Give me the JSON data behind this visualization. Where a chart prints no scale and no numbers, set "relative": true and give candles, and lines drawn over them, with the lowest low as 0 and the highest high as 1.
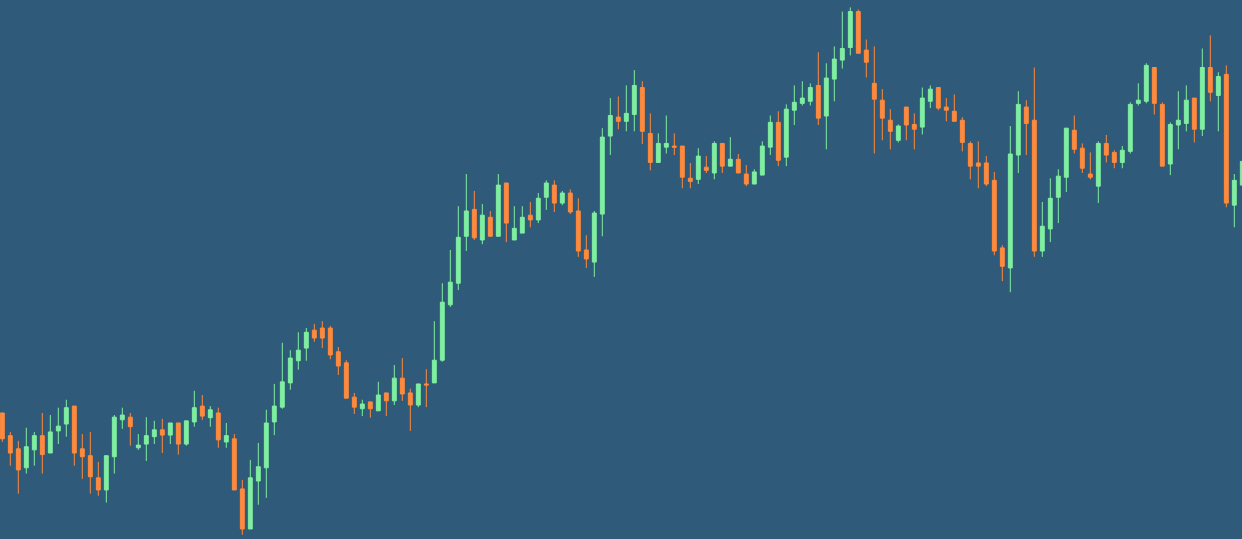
{
  "chart_data": {
    "type": "candlestick",
    "relative": true,
    "tick_labels": false,
    "categories": [
      null,
      null,
      null,
      null,
      null,
      null,
      null,
      null,
      null,
      null,
      null,
      null,
      null,
      null,
      null,
      null,
      null,
      null,
      null,
      null,
      null,
      null,
      null,
      null,
      null,
      null,
      null,
      null,
      null,
      null,
      null,
      null,
      null,
      null,
      null,
      null,
      null,
      null,
      null,
      null,
      null,
      null,
      null,
      null,
      null,
      null,
      null,
      null,
      null,
      null,
      null,
      null,
      null,
      null,
      null,
      null,
      null,
      null,
      null,
      null,
      null,
      null,
      null,
      null,
      null,
      null,
      null,
      null,
      null,
      null,
      null,
      null,
      null,
      null,
      null,
      null,
      null,
      null,
      null,
      null,
      null,
      null,
      null,
      null,
      null,
      null,
      null,
      null,
      null,
      null,
      null,
      null,
      null,
      null,
      null,
      null,
      null,
      null,
      null,
      null,
      null,
      null,
      null,
      null,
      null,
      null,
      null,
      null,
      null,
      null,
      null,
      null,
      null,
      null,
      null,
      null,
      null,
      null,
      null,
      null,
      null,
      null,
      null,
      null,
      null,
      null,
      null,
      null,
      null,
      null,
      null,
      null,
      null,
      null,
      null,
      null,
      null,
      null,
      null,
      null,
      null,
      null,
      null,
      null,
      null,
      null,
      null,
      null,
      null,
      null,
      null,
      null,
      null,
      null,
      null,
      null
    ],
    "ohlc": [
      [
        0.231,
        0.231,
        0.176,
        0.182
      ],
      [
        0.188,
        0.195,
        0.131,
        0.155
      ],
      [
        0.163,
        0.178,
        0.078,
        0.123
      ],
      [
        0.127,
        0.203,
        0.116,
        0.167
      ],
      [
        0.161,
        0.195,
        0.131,
        0.188
      ],
      [
        0.188,
        0.231,
        0.116,
        0.152
      ],
      [
        0.155,
        0.227,
        0.155,
        0.195
      ],
      [
        0.197,
        0.241,
        0.172,
        0.206
      ],
      [
        0.21,
        0.256,
        0.186,
        0.241
      ],
      [
        0.244,
        0.244,
        0.131,
        0.155
      ],
      [
        0.163,
        0.191,
        0.106,
        0.148
      ],
      [
        0.15,
        0.195,
        0.078,
        0.11
      ],
      [
        0.108,
        0.138,
        0.074,
        0.085
      ],
      [
        0.085,
        0.15,
        0.061,
        0.15
      ],
      [
        0.148,
        0.227,
        0.116,
        0.223
      ],
      [
        0.218,
        0.241,
        0.201,
        0.227
      ],
      [
        0.223,
        0.231,
        0.169,
        0.205
      ],
      [
        0.165,
        0.191,
        0.161,
        0.17
      ],
      [
        0.172,
        0.223,
        0.14,
        0.188
      ],
      [
        0.186,
        0.216,
        0.172,
        0.199
      ],
      [
        0.199,
        0.22,
        0.155,
        0.189
      ],
      [
        0.189,
        0.212,
        0.172,
        0.212
      ],
      [
        0.212,
        0.212,
        0.152,
        0.172
      ],
      [
        0.172,
        0.216,
        0.169,
        0.216
      ],
      [
        0.214,
        0.273,
        0.205,
        0.241
      ],
      [
        0.244,
        0.265,
        0.218,
        0.225
      ],
      [
        0.222,
        0.244,
        0.205,
        0.237
      ],
      [
        0.231,
        0.241,
        0.165,
        0.18
      ],
      [
        0.176,
        0.212,
        0.165,
        0.188
      ],
      [
        0.182,
        0.191,
        0.085,
        0.085
      ],
      [
        0.087,
        0.104,
        0,
        0.011
      ],
      [
        0.011,
        0.142,
        0.011,
        0.108
      ],
      [
        0.102,
        0.174,
        0.057,
        0.129
      ],
      [
        0.127,
        0.237,
        0.07,
        0.212
      ],
      [
        0.214,
        0.286,
        0.189,
        0.244
      ],
      [
        0.242,
        0.364,
        0.239,
        0.29
      ],
      [
        0.288,
        0.35,
        0.275,
        0.335
      ],
      [
        0.33,
        0.384,
        0.313,
        0.35
      ],
      [
        0.354,
        0.392,
        0.33,
        0.384
      ],
      [
        0.388,
        0.4,
        0.366,
        0.373
      ],
      [
        0.392,
        0.405,
        0.354,
        0.373
      ],
      [
        0.392,
        0.396,
        0.333,
        0.341
      ],
      [
        0.347,
        0.356,
        0.303,
        0.32
      ],
      [
        0.326,
        0.331,
        0.259,
        0.259
      ],
      [
        0.261,
        0.269,
        0.229,
        0.242
      ],
      [
        0.239,
        0.256,
        0.225,
        0.248
      ],
      [
        0.252,
        0.252,
        0.222,
        0.239
      ],
      [
        0.235,
        0.29,
        0.235,
        0.265
      ],
      [
        0.269,
        0.269,
        0.225,
        0.254
      ],
      [
        0.254,
        0.322,
        0.246,
        0.297
      ],
      [
        0.297,
        0.335,
        0.254,
        0.267
      ],
      [
        0.269,
        0.277,
        0.197,
        0.246
      ],
      [
        0.246,
        0.286,
        0.242,
        0.286
      ],
      [
        0.286,
        0.314,
        0.242,
        0.284
      ],
      [
        0.288,
        0.405,
        0.288,
        0.331
      ],
      [
        0.331,
        0.477,
        0.328,
        0.441
      ],
      [
        0.436,
        0.54,
        0.432,
        0.479
      ],
      [
        0.477,
        0.623,
        0.464,
        0.564
      ],
      [
        0.566,
        0.684,
        0.538,
        0.614
      ],
      [
        0.617,
        0.652,
        0.559,
        0.563
      ],
      [
        0.559,
        0.627,
        0.551,
        0.606
      ],
      [
        0.602,
        0.614,
        0.566,
        0.566
      ],
      [
        0.566,
        0.684,
        0.566,
        0.663
      ],
      [
        0.667,
        0.667,
        0.555,
        0.591
      ],
      [
        0.559,
        0.623,
        0.559,
        0.581
      ],
      [
        0.572,
        0.623,
        0.572,
        0.602
      ],
      [
        0.606,
        0.631,
        0.583,
        0.597
      ],
      [
        0.597,
        0.648,
        0.591,
        0.638
      ],
      [
        0.64,
        0.672,
        0.616,
        0.667
      ],
      [
        0.663,
        0.672,
        0.612,
        0.629
      ],
      [
        0.629,
        0.652,
        0.625,
        0.648
      ],
      [
        0.648,
        0.655,
        0.608,
        0.612
      ],
      [
        0.614,
        0.638,
        0.527,
        0.538
      ],
      [
        0.54,
        0.568,
        0.506,
        0.523
      ],
      [
        0.517,
        0.614,
        0.489,
        0.61
      ],
      [
        0.608,
        0.771,
        0.566,
        0.754
      ],
      [
        0.756,
        0.828,
        0.72,
        0.795
      ],
      [
        0.792,
        0.831,
        0.769,
        0.784
      ],
      [
        0.784,
        0.852,
        0.765,
        0.799
      ],
      [
        0.797,
        0.881,
        0.765,
        0.852
      ],
      [
        0.848,
        0.86,
        0.741,
        0.765
      ],
      [
        0.761,
        0.799,
        0.691,
        0.706
      ],
      [
        0.706,
        0.761,
        0.706,
        0.742
      ],
      [
        0.735,
        0.795,
        0.723,
        0.742
      ],
      [
        0.737,
        0.761,
        0.72,
        0.735
      ],
      [
        0.737,
        0.737,
        0.657,
        0.678
      ],
      [
        0.676,
        0.705,
        0.657,
        0.67
      ],
      [
        0.674,
        0.733,
        0.665,
        0.718
      ],
      [
        0.697,
        0.718,
        0.686,
        0.691
      ],
      [
        0.686,
        0.746,
        0.674,
        0.742
      ],
      [
        0.742,
        0.742,
        0.686,
        0.699
      ],
      [
        0.699,
        0.754,
        0.699,
        0.712
      ],
      [
        0.712,
        0.722,
        0.686,
        0.686
      ],
      [
        0.684,
        0.701,
        0.661,
        0.665
      ],
      [
        0.665,
        0.693,
        0.665,
        0.688
      ],
      [
        0.682,
        0.746,
        0.682,
        0.737
      ],
      [
        0.735,
        0.795,
        0.72,
        0.782
      ],
      [
        0.782,
        0.803,
        0.699,
        0.71
      ],
      [
        0.716,
        0.816,
        0.699,
        0.807
      ],
      [
        0.805,
        0.852,
        0.777,
        0.82
      ],
      [
        0.818,
        0.86,
        0.814,
        0.828
      ],
      [
        0.822,
        0.856,
        0.814,
        0.848
      ],
      [
        0.852,
        0.915,
        0.777,
        0.79
      ],
      [
        0.794,
        0.894,
        0.731,
        0.866
      ],
      [
        0.864,
        0.926,
        0.822,
        0.902
      ],
      [
        0.9,
        0.992,
        0.884,
        0.922
      ],
      [
        0.924,
        1,
        0.909,
        0.992
      ],
      [
        0.992,
        0.996,
        0.913,
        0.913
      ],
      [
        0.919,
        0.939,
        0.867,
        0.896
      ],
      [
        0.856,
        0.926,
        0.723,
        0.826
      ],
      [
        0.824,
        0.845,
        0.748,
        0.79
      ],
      [
        0.786,
        0.807,
        0.731,
        0.765
      ],
      [
        0.748,
        0.778,
        0.744,
        0.775
      ],
      [
        0.811,
        0.811,
        0.748,
        0.777
      ],
      [
        0.778,
        0.799,
        0.731,
        0.769
      ],
      [
        0.773,
        0.848,
        0.759,
        0.828
      ],
      [
        0.822,
        0.852,
        0.809,
        0.845
      ],
      [
        0.848,
        0.848,
        0.805,
        0.809
      ],
      [
        0.811,
        0.828,
        0.784,
        0.805
      ],
      [
        0.803,
        0.835,
        0.784,
        0.784
      ],
      [
        0.786,
        0.792,
        0.727,
        0.744
      ],
      [
        0.742,
        0.746,
        0.674,
        0.699
      ],
      [
        0.705,
        0.746,
        0.657,
        0.699
      ],
      [
        0.705,
        0.718,
        0.661,
        0.665
      ],
      [
        0.672,
        0.688,
        0.53,
        0.538
      ],
      [
        0.544,
        0.549,
        0.481,
        0.509
      ],
      [
        0.506,
        0.775,
        0.46,
        0.722
      ],
      [
        0.72,
        0.841,
        0.686,
        0.816
      ],
      [
        0.811,
        0.824,
        0.72,
        0.78
      ],
      [
        0.786,
        0.886,
        0.527,
        0.538
      ],
      [
        0.538,
        0.631,
        0.527,
        0.585
      ],
      [
        0.58,
        0.676,
        0.555,
        0.638
      ],
      [
        0.64,
        0.693,
        0.591,
        0.68
      ],
      [
        0.678,
        0.771,
        0.65,
        0.771
      ],
      [
        0.767,
        0.795,
        0.723,
        0.731
      ],
      [
        0.733,
        0.742,
        0.686,
        0.695
      ],
      [
        0.684,
        0.725,
        0.674,
        0.678
      ],
      [
        0.661,
        0.746,
        0.629,
        0.742
      ],
      [
        0.742,
        0.758,
        0.706,
        0.72
      ],
      [
        0.725,
        0.729,
        0.695,
        0.706
      ],
      [
        0.706,
        0.737,
        0.695,
        0.729
      ],
      [
        0.727,
        0.82,
        0.723,
        0.816
      ],
      [
        0.818,
        0.856,
        0.814,
        0.824
      ],
      [
        0.822,
        0.894,
        0.818,
        0.89
      ],
      [
        0.886,
        0.886,
        0.797,
        0.818
      ],
      [
        0.816,
        0.82,
        0.699,
        0.699
      ],
      [
        0.703,
        0.782,
        0.682,
        0.778
      ],
      [
        0.777,
        0.841,
        0.731,
        0.786
      ],
      [
        0.78,
        0.852,
        0.765,
        0.824
      ],
      [
        0.828,
        0.828,
        0.744,
        0.769
      ],
      [
        0.769,
        0.922,
        0.756,
        0.886
      ],
      [
        0.886,
        0.947,
        0.822,
        0.839
      ],
      [
        0.833,
        0.877,
        0.765,
        0.869
      ],
      [
        0.873,
        0.89,
        0.621,
        0.629
      ],
      [
        0.625,
        0.684,
        0.583,
        0.672
      ],
      [
        0.663,
        0.708,
        0.663,
        0.708
      ]
    ],
    "colors": [
      "#ff8a3d",
      "#ff8a3d",
      "#ff8a3d",
      "#80eea0",
      "#80eea0",
      "#ff8a3d",
      "#80eea0",
      "#80eea0",
      "#80eea0",
      "#ff8a3d",
      "#ff8a3d",
      "#ff8a3d",
      "#ff8a3d",
      "#80eea0",
      "#80eea0",
      "#80eea0",
      "#ff8a3d",
      "#80eea0",
      "#80eea0",
      "#80eea0",
      "#ff8a3d",
      "#80eea0",
      "#ff8a3d",
      "#80eea0",
      "#80eea0",
      "#ff8a3d",
      "#80eea0",
      "#ff8a3d",
      "#80eea0",
      "#ff8a3d",
      "#ff8a3d",
      "#80eea0",
      "#80eea0",
      "#80eea0",
      "#80eea0",
      "#80eea0",
      "#80eea0",
      "#80eea0",
      "#80eea0",
      "#ff8a3d",
      "#ff8a3d",
      "#ff8a3d",
      "#ff8a3d",
      "#ff8a3d",
      "#ff8a3d",
      "#80eea0",
      "#ff8a3d",
      "#80eea0",
      "#ff8a3d",
      "#80eea0",
      "#ff8a3d",
      "#ff8a3d",
      "#80eea0",
      "#ff8a3d",
      "#80eea0",
      "#80eea0",
      "#80eea0",
      "#80eea0",
      "#80eea0",
      "#ff8a3d",
      "#80eea0",
      "#ff8a3d",
      "#80eea0",
      "#ff8a3d",
      "#80eea0",
      "#80eea0",
      "#ff8a3d",
      "#80eea0",
      "#80eea0",
      "#ff8a3d",
      "#80eea0",
      "#ff8a3d",
      "#ff8a3d",
      "#ff8a3d",
      "#80eea0",
      "#80eea0",
      "#80eea0",
      "#ff8a3d",
      "#80eea0",
      "#80eea0",
      "#ff8a3d",
      "#ff8a3d",
      "#80eea0",
      "#80eea0",
      "#ff8a3d",
      "#ff8a3d",
      "#ff8a3d",
      "#80eea0",
      "#ff8a3d",
      "#80eea0",
      "#ff8a3d",
      "#80eea0",
      "#ff8a3d",
      "#ff8a3d",
      "#80eea0",
      "#80eea0",
      "#80eea0",
      "#ff8a3d",
      "#80eea0",
      "#80eea0",
      "#80eea0",
      "#80eea0",
      "#ff8a3d",
      "#80eea0",
      "#80eea0",
      "#80eea0",
      "#80eea0",
      "#ff8a3d",
      "#ff8a3d",
      "#ff8a3d",
      "#ff8a3d",
      "#ff8a3d",
      "#80eea0",
      "#ff8a3d",
      "#ff8a3d",
      "#80eea0",
      "#80eea0",
      "#ff8a3d",
      "#ff8a3d",
      "#ff8a3d",
      "#ff8a3d",
      "#ff8a3d",
      "#ff8a3d",
      "#ff8a3d",
      "#ff8a3d",
      "#ff8a3d",
      "#80eea0",
      "#80eea0",
      "#ff8a3d",
      "#ff8a3d",
      "#80eea0",
      "#80eea0",
      "#80eea0",
      "#80eea0",
      "#ff8a3d",
      "#ff8a3d",
      "#ff8a3d",
      "#80eea0",
      "#ff8a3d",
      "#ff8a3d",
      "#80eea0",
      "#80eea0",
      "#80eea0",
      "#80eea0",
      "#ff8a3d",
      "#ff8a3d",
      "#80eea0",
      "#80eea0",
      "#80eea0",
      "#ff8a3d",
      "#80eea0",
      "#ff8a3d",
      "#80eea0",
      "#ff8a3d",
      "#80eea0",
      "#80eea0"
    ]
  }
}
